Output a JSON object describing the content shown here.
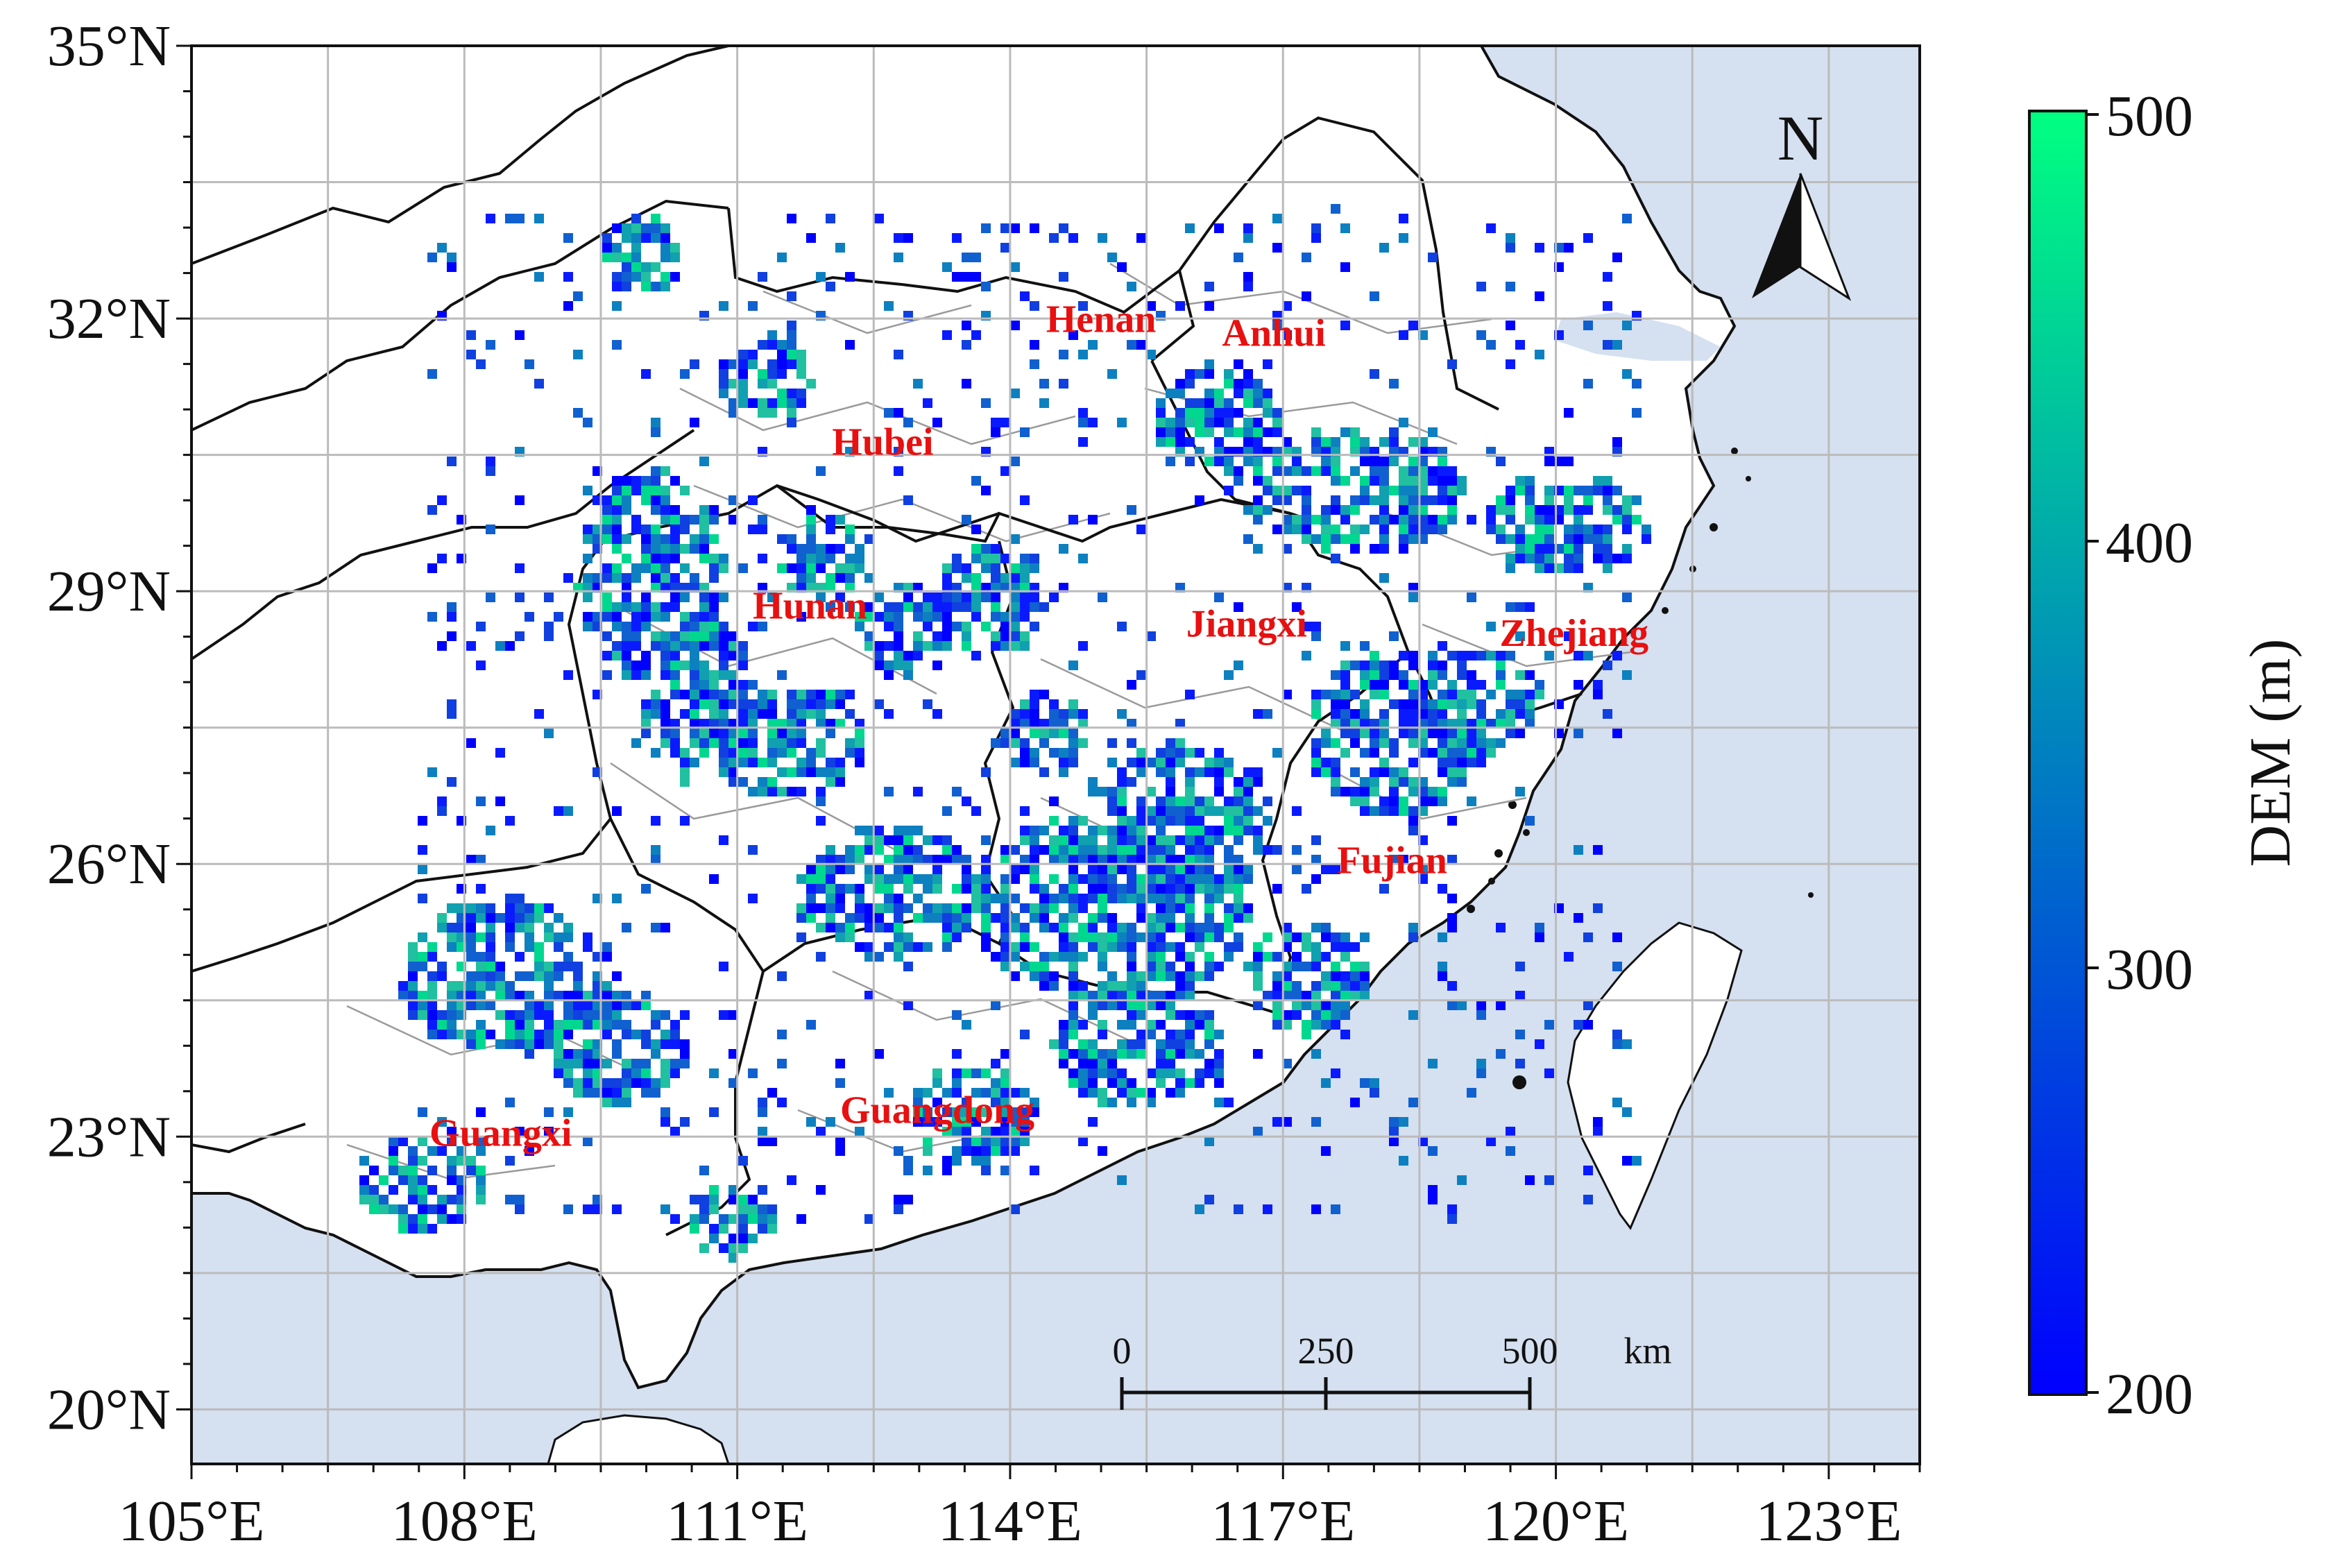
{
  "map": {
    "lon_ticks": [
      "105°E",
      "108°E",
      "111°E",
      "114°E",
      "117°E",
      "120°E",
      "123°E"
    ],
    "lat_ticks": [
      "35°N",
      "32°N",
      "29°N",
      "26°N",
      "23°N",
      "20°N"
    ],
    "extent": {
      "lon": [
        105,
        124
      ],
      "lat": [
        19.4,
        35
      ]
    },
    "grid": true,
    "colors": {
      "sea": "#d5e0f0",
      "land": "#ffffff",
      "province_border": "#111111",
      "city_border": "#9a9a9a",
      "grid": "#bbbbbb",
      "label": "#e81010"
    },
    "province_labels": [
      {
        "name": "Henan",
        "lon": 115.0,
        "lat": 31.85
      },
      {
        "name": "Anhui",
        "lon": 116.9,
        "lat": 31.7
      },
      {
        "name": "Hubei",
        "lon": 112.6,
        "lat": 30.5
      },
      {
        "name": "Hunan",
        "lon": 111.8,
        "lat": 28.7
      },
      {
        "name": "Jiangxi",
        "lon": 116.6,
        "lat": 28.5
      },
      {
        "name": "Zhejiang",
        "lon": 120.2,
        "lat": 28.4
      },
      {
        "name": "Fujian",
        "lon": 118.2,
        "lat": 25.9
      },
      {
        "name": "Guangdong",
        "lon": 113.2,
        "lat": 23.15
      },
      {
        "name": "Guangxi",
        "lon": 108.4,
        "lat": 22.9
      }
    ],
    "north_arrow": {
      "label": "N"
    },
    "scale_bar": {
      "labels": [
        "0",
        "250",
        "500"
      ],
      "unit": "km"
    }
  },
  "colorbar": {
    "title": "DEM (m)",
    "ticks": [
      "500",
      "400",
      "300",
      "200"
    ],
    "range": [
      200,
      500
    ],
    "colormap": "winter",
    "colors": {
      "low": "#0000ff",
      "high": "#00ff80"
    }
  }
}
